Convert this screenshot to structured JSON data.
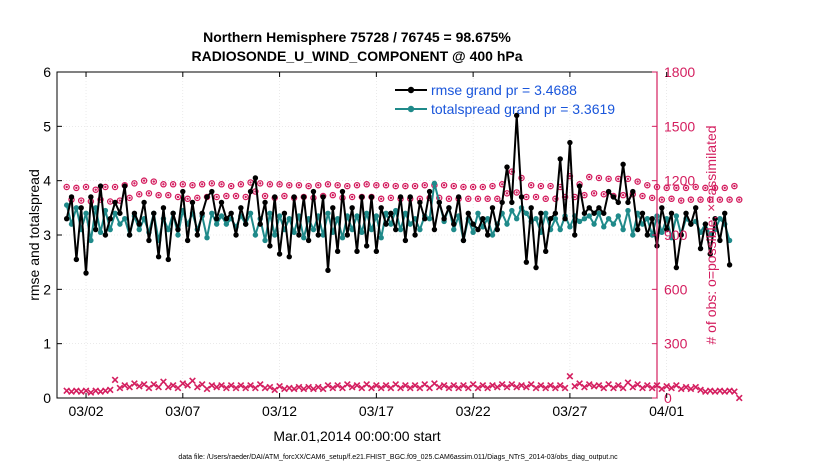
{
  "chart_data": {
    "type": "line",
    "title_line1": "Northern Hemisphere 75728 / 76745 = 98.675%",
    "title_line2": "RADIOSONDE_U_WIND_COMPONENT @ 400 hPa",
    "xlabel": "Mar.01,2014 00:00:00 start",
    "ylabel_left": "rmse and totalspread",
    "ylabel_right": "# of obs: o=possible; ×=assimilated",
    "footer": "data file: /Users/raeder/DAI/ATM_forcXX/CAM6_setup/f.e21.FHIST_BGC.f09_025.CAM6assim.011/Diags_NTrS_2014-03/obs_diag_output.nc",
    "xlim": [
      0.5,
      31.5
    ],
    "ylim_left": [
      0,
      6
    ],
    "ylim_right": [
      0,
      1800
    ],
    "x_tick_values": [
      2,
      7,
      12,
      17,
      22,
      27,
      32
    ],
    "x_tick_labels": [
      "03/02",
      "03/07",
      "03/12",
      "03/17",
      "03/22",
      "03/27",
      "04/01"
    ],
    "y_left_ticks": [
      "0",
      "1",
      "2",
      "3",
      "4",
      "5",
      "6"
    ],
    "y_right_ticks": [
      "0",
      "300",
      "600",
      "900",
      "1200",
      "1500",
      "1800"
    ],
    "legend": {
      "rmse_label": "rmse grand pr = 3.4688",
      "spread_label": "totalspread grand pr = 3.3619",
      "location": "top-right"
    },
    "colors": {
      "rmse": "#000000",
      "totalspread": "#1f8a8a",
      "obs": "#d41e5f",
      "legend_text": "#1a56db"
    },
    "series": [
      {
        "name": "rmse",
        "axis": "left",
        "values": [
          3.3,
          3.7,
          2.55,
          3.5,
          2.3,
          3.7,
          3.1,
          3.9,
          3.0,
          3.3,
          3.6,
          3.4,
          3.9,
          3.0,
          3.4,
          3.2,
          3.6,
          2.9,
          3.4,
          2.6,
          3.5,
          2.55,
          3.4,
          3.1,
          3.8,
          2.9,
          3.6,
          3.0,
          3.4,
          3.7,
          3.8,
          3.3,
          3.6,
          3.3,
          3.4,
          3.0,
          3.5,
          3.2,
          3.8,
          4.05,
          3.2,
          3.6,
          2.8,
          3.7,
          2.65,
          3.4,
          2.6,
          3.7,
          3.0,
          3.7,
          2.9,
          3.8,
          3.0,
          3.7,
          2.35,
          3.5,
          2.7,
          3.8,
          3.0,
          3.5,
          2.7,
          3.7,
          2.8,
          3.7,
          2.7,
          3.5,
          3.2,
          3.4,
          3.1,
          3.7,
          2.9,
          3.7,
          3.0,
          3.6,
          3.3,
          3.8,
          3.1,
          3.6,
          3.3,
          3.5,
          3.2,
          3.7,
          2.9,
          3.4,
          3.2,
          3.1,
          3.3,
          3.0,
          3.5,
          3.1,
          3.6,
          4.25,
          3.6,
          5.2,
          3.7,
          2.5,
          3.5,
          2.4,
          3.4,
          2.7,
          3.3,
          3.4,
          4.4,
          3.3,
          4.7,
          3.0,
          3.9,
          3.4,
          3.5,
          3.4,
          3.5,
          3.4,
          3.8,
          3.7,
          3.6,
          4.3,
          3.6,
          3.8,
          3.1,
          3.4,
          3.0,
          3.3,
          2.8,
          3.5,
          3.1,
          3.4,
          2.4,
          3.0,
          3.4,
          3.2,
          3.5,
          2.75,
          3.2,
          2.65,
          3.3,
          2.9,
          3.4,
          2.45
        ]
      },
      {
        "name": "totalspread",
        "axis": "left",
        "values": [
          3.55,
          3.2,
          3.5,
          3.1,
          3.4,
          2.9,
          3.5,
          3.05,
          3.45,
          3.1,
          3.4,
          3.2,
          3.3,
          3.0,
          3.35,
          3.1,
          3.3,
          3.05,
          3.4,
          2.9,
          3.3,
          3.1,
          3.4,
          3.0,
          3.45,
          3.2,
          3.4,
          3.1,
          3.35,
          2.95,
          3.4,
          3.2,
          3.35,
          3.2,
          3.3,
          3.15,
          3.35,
          3.2,
          3.4,
          3.0,
          3.3,
          2.9,
          3.4,
          3.0,
          3.35,
          3.1,
          3.3,
          3.05,
          3.35,
          2.95,
          3.3,
          3.1,
          3.35,
          3.0,
          3.4,
          3.05,
          3.3,
          2.95,
          3.35,
          3.1,
          3.35,
          3.05,
          3.4,
          3.1,
          3.35,
          2.95,
          3.4,
          3.2,
          3.45,
          3.1,
          3.4,
          3.2,
          3.3,
          3.1,
          3.35,
          3.3,
          3.95,
          3.6,
          3.25,
          3.5,
          3.1,
          3.35,
          2.9,
          3.3,
          3.05,
          3.4,
          3.15,
          3.3,
          3.0,
          3.2,
          3.4,
          3.2,
          3.45,
          3.3,
          3.5,
          3.4,
          3.25,
          3.3,
          3.05,
          3.4,
          3.1,
          3.3,
          3.1,
          3.35,
          3.15,
          3.35,
          3.25,
          3.3,
          3.35,
          3.2,
          3.4,
          3.15,
          3.3,
          3.2,
          3.35,
          3.1,
          3.45,
          3.0,
          3.4,
          3.2,
          3.3,
          3.0,
          3.35,
          3.05,
          3.3,
          2.95,
          3.35,
          3.0,
          3.3,
          3.2,
          3.25,
          3.05,
          3.2,
          3.0,
          3.1,
          3.3,
          3.2,
          2.9
        ]
      },
      {
        "name": "obs_possible",
        "axis": "right",
        "values": [
          1165,
          1095,
          1160,
          1090,
          1165,
          1085,
          1150,
          1095,
          1165,
          1085,
          1165,
          1090,
          1175,
          1105,
          1185,
          1125,
          1200,
          1130,
          1195,
          1120,
          1180,
          1120,
          1180,
          1110,
          1180,
          1100,
          1175,
          1105,
          1180,
          1110,
          1185,
          1110,
          1180,
          1115,
          1170,
          1115,
          1180,
          1110,
          1190,
          1140,
          1185,
          1115,
          1180,
          1105,
          1180,
          1115,
          1175,
          1105,
          1175,
          1110,
          1170,
          1105,
          1175,
          1115,
          1180,
          1120,
          1175,
          1105,
          1170,
          1110,
          1175,
          1110,
          1180,
          1110,
          1175,
          1100,
          1175,
          1105,
          1170,
          1100,
          1170,
          1100,
          1170,
          1100,
          1175,
          1105,
          1175,
          1105,
          1175,
          1100,
          1170,
          1100,
          1165,
          1100,
          1165,
          1100,
          1165,
          1100,
          1170,
          1100,
          1180,
          1130,
          1250,
          1135,
          1215,
          1110,
          1175,
          1110,
          1170,
          1100,
          1170,
          1100,
          1165,
          1110,
          1225,
          1110,
          1180,
          1120,
          1220,
          1130,
          1215,
          1125,
          1210,
          1115,
          1210,
          1120,
          1210,
          1125,
          1195,
          1115,
          1175,
          1105,
          1165,
          1095,
          1160,
          1100,
          1160,
          1090,
          1160,
          1095,
          1165,
          1095,
          1160,
          1095,
          1160,
          1095,
          1160,
          1095,
          1170,
          1095
        ]
      },
      {
        "name": "obs_assimilated",
        "axis": "right",
        "values": [
          40,
          35,
          40,
          35,
          40,
          30,
          40,
          35,
          40,
          45,
          100,
          55,
          70,
          60,
          80,
          65,
          75,
          55,
          75,
          60,
          90,
          60,
          70,
          55,
          80,
          70,
          95,
          60,
          75,
          50,
          70,
          60,
          70,
          55,
          70,
          55,
          70,
          55,
          70,
          55,
          75,
          55,
          60,
          45,
          65,
          50,
          55,
          50,
          60,
          50,
          60,
          50,
          60,
          50,
          70,
          55,
          70,
          55,
          75,
          60,
          70,
          55,
          75,
          55,
          70,
          55,
          70,
          55,
          75,
          55,
          70,
          55,
          70,
          55,
          75,
          55,
          80,
          60,
          70,
          55,
          70,
          55,
          70,
          55,
          75,
          55,
          70,
          55,
          70,
          60,
          75,
          60,
          75,
          60,
          70,
          60,
          75,
          55,
          70,
          55,
          70,
          55,
          70,
          55,
          120,
          65,
          80,
          60,
          75,
          65,
          70,
          55,
          75,
          55,
          70,
          55,
          85,
          60,
          75,
          55,
          70,
          55,
          70,
          50,
          65,
          55,
          70,
          50,
          60,
          50,
          60,
          45,
          35,
          40,
          35,
          40,
          35,
          40,
          35,
          0
        ]
      }
    ]
  }
}
